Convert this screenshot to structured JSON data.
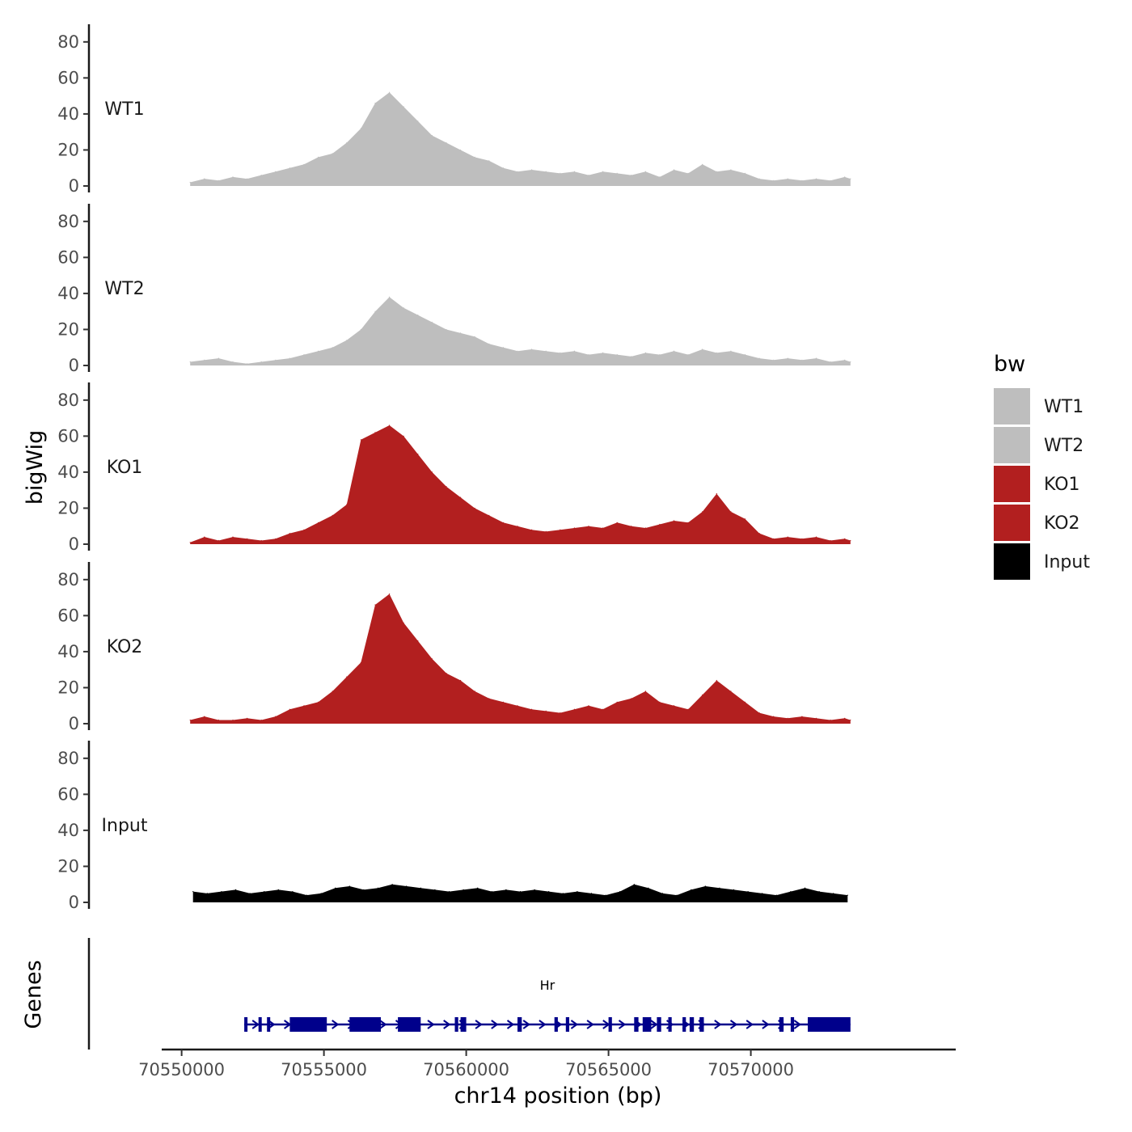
{
  "chart_data": {
    "type": "area",
    "title": "",
    "xlabel": "chr14 position (bp)",
    "ylabel": "bigWig",
    "genes_label": "Genes",
    "xlim": [
      70549300,
      70577200
    ],
    "x_ticks": [
      70550000,
      70555000,
      70560000,
      70565000,
      70570000
    ],
    "x_tick_labels": [
      "70550000",
      "70555000",
      "70560000",
      "70565000",
      "70570000"
    ],
    "ylim": [
      0,
      88
    ],
    "y_ticks": [
      0,
      20,
      40,
      60,
      80
    ],
    "y_tick_labels": [
      "0",
      "20",
      "40",
      "60",
      "80"
    ],
    "legend_title": "bw",
    "legend_position": "right",
    "series": [
      {
        "name": "WT1",
        "color": "#bebebe",
        "x": [
          70550300,
          70550800,
          70551300,
          70551800,
          70552300,
          70552800,
          70553300,
          70553800,
          70554300,
          70554800,
          70555300,
          70555800,
          70556300,
          70556800,
          70557300,
          70557800,
          70558300,
          70558800,
          70559300,
          70559800,
          70560300,
          70560800,
          70561300,
          70561800,
          70562300,
          70562800,
          70563300,
          70563800,
          70564300,
          70564800,
          70565300,
          70565800,
          70566300,
          70566800,
          70567300,
          70567800,
          70568300,
          70568800,
          70569300,
          70569800,
          70570300,
          70570800,
          70571300,
          70571800,
          70572300,
          70572800,
          70573300,
          70573500
        ],
        "values": [
          2,
          4,
          3,
          5,
          4,
          6,
          8,
          10,
          12,
          16,
          18,
          24,
          32,
          46,
          52,
          44,
          36,
          28,
          24,
          20,
          16,
          14,
          10,
          8,
          9,
          8,
          7,
          8,
          6,
          8,
          7,
          6,
          8,
          5,
          9,
          7,
          12,
          8,
          9,
          7,
          4,
          3,
          4,
          3,
          4,
          3,
          5,
          4
        ]
      },
      {
        "name": "WT2",
        "color": "#bebebe",
        "x": [
          70550300,
          70550800,
          70551300,
          70551800,
          70552300,
          70552800,
          70553300,
          70553800,
          70554300,
          70554800,
          70555300,
          70555800,
          70556300,
          70556800,
          70557300,
          70557800,
          70558300,
          70558800,
          70559300,
          70559800,
          70560300,
          70560800,
          70561300,
          70561800,
          70562300,
          70562800,
          70563300,
          70563800,
          70564300,
          70564800,
          70565300,
          70565800,
          70566300,
          70566800,
          70567300,
          70567800,
          70568300,
          70568800,
          70569300,
          70569800,
          70570300,
          70570800,
          70571300,
          70571800,
          70572300,
          70572800,
          70573300,
          70573500
        ],
        "values": [
          2,
          3,
          4,
          2,
          1,
          2,
          3,
          4,
          6,
          8,
          10,
          14,
          20,
          30,
          38,
          32,
          28,
          24,
          20,
          18,
          16,
          12,
          10,
          8,
          9,
          8,
          7,
          8,
          6,
          7,
          6,
          5,
          7,
          6,
          8,
          6,
          9,
          7,
          8,
          6,
          4,
          3,
          4,
          3,
          4,
          2,
          3,
          2
        ]
      },
      {
        "name": "KO1",
        "color": "#b21f1f",
        "x": [
          70550300,
          70550800,
          70551300,
          70551800,
          70552300,
          70552800,
          70553300,
          70553800,
          70554300,
          70554800,
          70555300,
          70555800,
          70556300,
          70556800,
          70557300,
          70557800,
          70558300,
          70558800,
          70559300,
          70559800,
          70560300,
          70560800,
          70561300,
          70561800,
          70562300,
          70562800,
          70563300,
          70563800,
          70564300,
          70564800,
          70565300,
          70565800,
          70566300,
          70566800,
          70567300,
          70567800,
          70568300,
          70568800,
          70569300,
          70569800,
          70570300,
          70570800,
          70571300,
          70571800,
          70572300,
          70572800,
          70573300,
          70573500
        ],
        "values": [
          1,
          4,
          2,
          4,
          3,
          2,
          3,
          6,
          8,
          12,
          16,
          22,
          58,
          62,
          66,
          60,
          50,
          40,
          32,
          26,
          20,
          16,
          12,
          10,
          8,
          7,
          8,
          9,
          10,
          9,
          12,
          10,
          9,
          11,
          13,
          12,
          18,
          28,
          18,
          14,
          6,
          3,
          4,
          3,
          4,
          2,
          3,
          2
        ]
      },
      {
        "name": "KO2",
        "color": "#b21f1f",
        "x": [
          70550300,
          70550800,
          70551300,
          70551800,
          70552300,
          70552800,
          70553300,
          70553800,
          70554300,
          70554800,
          70555300,
          70555800,
          70556300,
          70556800,
          70557300,
          70557800,
          70558300,
          70558800,
          70559300,
          70559800,
          70560300,
          70560800,
          70561300,
          70561800,
          70562300,
          70562800,
          70563300,
          70563800,
          70564300,
          70564800,
          70565300,
          70565800,
          70566300,
          70566800,
          70567300,
          70567800,
          70568300,
          70568800,
          70569300,
          70569800,
          70570300,
          70570800,
          70571300,
          70571800,
          70572300,
          70572800,
          70573300,
          70573500
        ],
        "values": [
          2,
          4,
          2,
          2,
          3,
          2,
          4,
          8,
          10,
          12,
          18,
          26,
          34,
          66,
          72,
          56,
          46,
          36,
          28,
          24,
          18,
          14,
          12,
          10,
          8,
          7,
          6,
          8,
          10,
          8,
          12,
          14,
          18,
          12,
          10,
          8,
          16,
          24,
          18,
          12,
          6,
          4,
          3,
          4,
          3,
          2,
          3,
          2
        ]
      },
      {
        "name": "Input",
        "color": "#000000",
        "x": [
          70550400,
          70550900,
          70551400,
          70551900,
          70552400,
          70552900,
          70553400,
          70553900,
          70554400,
          70554900,
          70555400,
          70555900,
          70556400,
          70556900,
          70557400,
          70557900,
          70558400,
          70558900,
          70559400,
          70559900,
          70560400,
          70560900,
          70561400,
          70561900,
          70562400,
          70562900,
          70563400,
          70563900,
          70564400,
          70564900,
          70565400,
          70565900,
          70566400,
          70566900,
          70567400,
          70567900,
          70568400,
          70568900,
          70569400,
          70569900,
          70570400,
          70570900,
          70571400,
          70571900,
          70572400,
          70572900,
          70573400
        ],
        "values": [
          6,
          5,
          6,
          7,
          5,
          6,
          7,
          6,
          4,
          5,
          8,
          9,
          7,
          8,
          10,
          9,
          8,
          7,
          6,
          7,
          8,
          6,
          7,
          6,
          7,
          6,
          5,
          6,
          5,
          4,
          6,
          10,
          8,
          5,
          4,
          7,
          9,
          8,
          7,
          6,
          5,
          4,
          6,
          8,
          6,
          5,
          4
        ]
      }
    ],
    "gene": {
      "name": "Hr",
      "strand": "+",
      "color": "#00008b",
      "start": 70552200,
      "end": 70573500,
      "exons": [
        [
          70552200,
          70552300
        ],
        [
          70552700,
          70552800
        ],
        [
          70553000,
          70553080
        ],
        [
          70553800,
          70555100
        ],
        [
          70555900,
          70557000
        ],
        [
          70557600,
          70558400
        ],
        [
          70559600,
          70559720
        ],
        [
          70559800,
          70560000
        ],
        [
          70561800,
          70561950
        ],
        [
          70563100,
          70563220
        ],
        [
          70563500,
          70563620
        ],
        [
          70565000,
          70565120
        ],
        [
          70565900,
          70566050
        ],
        [
          70566200,
          70566500
        ],
        [
          70566700,
          70566850
        ],
        [
          70567100,
          70567220
        ],
        [
          70567600,
          70567720
        ],
        [
          70567850,
          70568000
        ],
        [
          70568200,
          70568350
        ],
        [
          70571000,
          70571150
        ],
        [
          70571400,
          70571520
        ],
        [
          70572000,
          70573500
        ]
      ]
    }
  }
}
